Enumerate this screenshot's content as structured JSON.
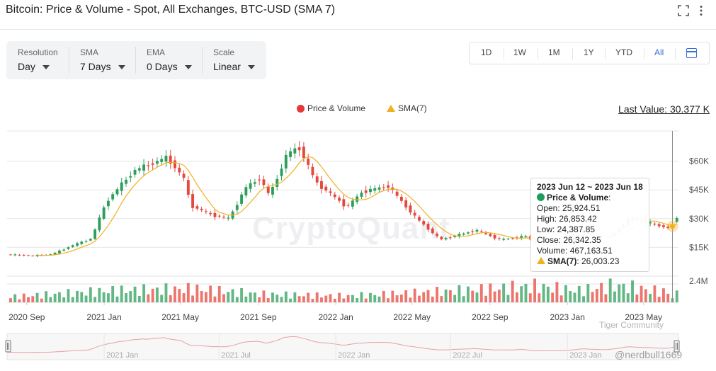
{
  "header": {
    "title": "Bitcoin: Price & Volume - Spot, All Exchanges, BTC-USD (SMA 7)"
  },
  "controls": [
    {
      "label": "Resolution",
      "value": "Day"
    },
    {
      "label": "SMA",
      "value": "7 Days"
    },
    {
      "label": "EMA",
      "value": "0 Days"
    },
    {
      "label": "Scale",
      "value": "Linear"
    }
  ],
  "ranges": [
    "1D",
    "1W",
    "1M",
    "1Y",
    "YTD",
    "All"
  ],
  "active_range": "All",
  "legend": {
    "price": "Price & Volume",
    "sma": "SMA(7)"
  },
  "last_value": "Last Value: 30.377 K",
  "tooltip": {
    "date": "2023 Jun 12 ~ 2023 Jun 18",
    "series": "Price & Volume",
    "open": "Open: 25,924.51",
    "high": "High: 26,853.42",
    "low": "Low: 24,387.85",
    "close": "Close: 26,342.35",
    "volume": "Volume: 467,163.51",
    "sma_label": "SMA(7)",
    "sma_value": ": 26,003.23"
  },
  "watermark": "CryptoQuant",
  "overlay": {
    "community": "Tiger Community",
    "handle": "@nerdbull1669"
  },
  "colors": {
    "up": "#2e9f5b",
    "down": "#e5483d",
    "sma": "#f2b01e",
    "accent": "#3b6fd8",
    "volume": "#2e9f5b"
  },
  "chart_data": {
    "type": "candlestick",
    "title": "Bitcoin: Price & Volume - Spot, All Exchanges, BTC-USD (SMA 7)",
    "x_tick_labels": [
      "2020 Sep",
      "2021 Jan",
      "2021 May",
      "2021 Sep",
      "2022 Jan",
      "2022 May",
      "2022 Sep",
      "2023 Jan",
      "2023 May"
    ],
    "navigator_labels": [
      "2021 Jan",
      "2021 Jul",
      "2022 Jan",
      "2022 Jul",
      "2023 Jan"
    ],
    "y_ticks": [
      "$15K",
      "$30K",
      "$45K",
      "$60K"
    ],
    "y_tick_values": [
      15000,
      30000,
      45000,
      60000
    ],
    "ylim": [
      0,
      75000
    ],
    "volume_tick": "2.4M",
    "volume_tick_value": 2400000,
    "grid": true,
    "legend_placement": "top-center",
    "price_anchors": [
      [
        "2020-08-01",
        11300
      ],
      [
        "2020-09-15",
        10600
      ],
      [
        "2020-10-15",
        11500
      ],
      [
        "2020-11-15",
        16000
      ],
      [
        "2020-12-15",
        19500
      ],
      [
        "2021-01-08",
        39000
      ],
      [
        "2021-02-20",
        55000
      ],
      [
        "2021-03-15",
        58000
      ],
      [
        "2021-04-14",
        62000
      ],
      [
        "2021-05-12",
        50000
      ],
      [
        "2021-05-20",
        37000
      ],
      [
        "2021-06-22",
        32000
      ],
      [
        "2021-07-20",
        30000
      ],
      [
        "2021-08-15",
        46000
      ],
      [
        "2021-09-06",
        51000
      ],
      [
        "2021-09-22",
        42000
      ],
      [
        "2021-10-20",
        64000
      ],
      [
        "2021-11-08",
        67000
      ],
      [
        "2021-12-04",
        49000
      ],
      [
        "2022-01-22",
        36000
      ],
      [
        "2022-02-15",
        44000
      ],
      [
        "2022-03-28",
        47000
      ],
      [
        "2022-05-09",
        31000
      ],
      [
        "2022-06-18",
        19000
      ],
      [
        "2022-08-14",
        24000
      ],
      [
        "2022-09-20",
        19000
      ],
      [
        "2022-11-05",
        21000
      ],
      [
        "2022-11-10",
        16500
      ],
      [
        "2022-12-31",
        16500
      ],
      [
        "2023-01-31",
        23000
      ],
      [
        "2023-03-11",
        20000
      ],
      [
        "2023-04-14",
        30500
      ],
      [
        "2023-05-20",
        27000
      ],
      [
        "2023-06-15",
        25000
      ],
      [
        "2023-06-21",
        30000
      ],
      [
        "2023-06-25",
        30377
      ]
    ],
    "volume_anchors": [
      [
        "2020-08-01",
        600000
      ],
      [
        "2021-01-10",
        1300000
      ],
      [
        "2021-05-20",
        1500000
      ],
      [
        "2021-09-01",
        900000
      ],
      [
        "2022-01-15",
        700000
      ],
      [
        "2022-06-15",
        1200000
      ],
      [
        "2022-11-10",
        1800000
      ],
      [
        "2023-01-15",
        1300000
      ],
      [
        "2023-03-15",
        1900000
      ],
      [
        "2023-06-25",
        900000
      ]
    ],
    "highlight": {
      "start": "2023-06-12",
      "end": "2023-06-18",
      "open": 25924.51,
      "high": 26853.42,
      "low": 24387.85,
      "close": 26342.35,
      "volume": 467163.51,
      "sma7": 26003.23
    }
  }
}
